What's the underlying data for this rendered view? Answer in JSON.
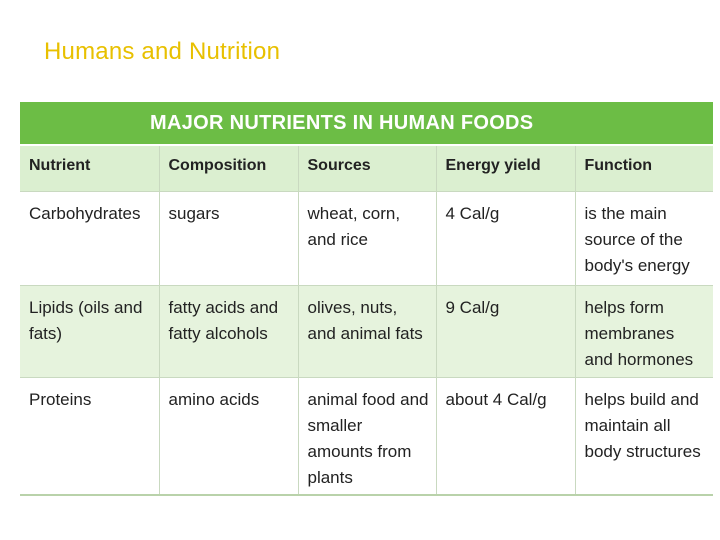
{
  "slide": {
    "title": "Humans and Nutrition"
  },
  "table": {
    "caption": "MAJOR NUTRIENTS IN HUMAN FOODS",
    "columns": [
      "Nutrient",
      "Composition",
      "Sources",
      "Energy yield",
      "Function"
    ],
    "rows": [
      [
        "Carbohydrates",
        "sugars",
        "wheat, corn, and rice",
        "4 Cal/g",
        "is the main source of the body's energy"
      ],
      [
        "Lipids (oils and fats)",
        "fatty acids and fatty alcohols",
        "olives, nuts, and animal fats",
        "9 Cal/g",
        "helps form membranes and hormones"
      ],
      [
        "Proteins",
        "amino acids",
        "animal food and smaller amounts from plants",
        "about 4 Cal/g",
        "helps build and maintain all body structures"
      ]
    ]
  },
  "colors": {
    "title": "#e8c000",
    "header_band": "#6cbd45",
    "column_header_bg": "#dbefd0",
    "alt_row_bg": "#e6f3dd"
  }
}
